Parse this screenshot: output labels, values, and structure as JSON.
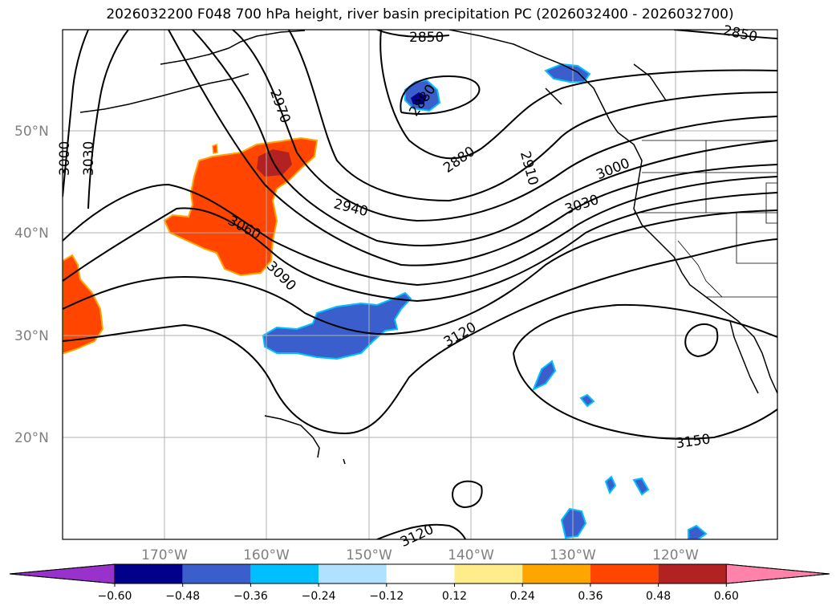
{
  "title": "2026032200 F048 700 hPa height, river basin precipitation PC (2026032400 - 2026032700)",
  "lat_labels": [
    {
      "text": "50°N",
      "lat": 50
    },
    {
      "text": "40°N",
      "lat": 40
    },
    {
      "text": "30°N",
      "lat": 30
    },
    {
      "text": "20°N",
      "lat": 20
    }
  ],
  "lon_labels": [
    {
      "text": "170°W",
      "lon": -170
    },
    {
      "text": "160°W",
      "lon": -160
    },
    {
      "text": "150°W",
      "lon": -150
    },
    {
      "text": "140°W",
      "lon": -140
    },
    {
      "text": "130°W",
      "lon": -130
    },
    {
      "text": "120°W",
      "lon": -120
    }
  ],
  "contour_labels": [
    {
      "text": "2850"
    },
    {
      "text": "2850"
    },
    {
      "text": "2880"
    },
    {
      "text": "2880"
    },
    {
      "text": "2910"
    },
    {
      "text": "2940"
    },
    {
      "text": "2970"
    },
    {
      "text": "3000"
    },
    {
      "text": "3000"
    },
    {
      "text": "3030"
    },
    {
      "text": "3030"
    },
    {
      "text": "3060"
    },
    {
      "text": "3090"
    },
    {
      "text": "3120"
    },
    {
      "text": "3120"
    },
    {
      "text": "3150"
    }
  ],
  "colorbar": {
    "labels": [
      "−0.60",
      "−0.48",
      "−0.36",
      "−0.24",
      "−0.12",
      "0.12",
      "0.24",
      "0.36",
      "0.48",
      "0.60"
    ],
    "colors": [
      "#9932cc",
      "#00008b",
      "#3a5fcd",
      "#00bfff",
      "#b0e2ff",
      "#ffffff",
      "#ffec8b",
      "#ffa500",
      "#ff4500",
      "#b22222",
      "#ff82ab"
    ]
  }
}
